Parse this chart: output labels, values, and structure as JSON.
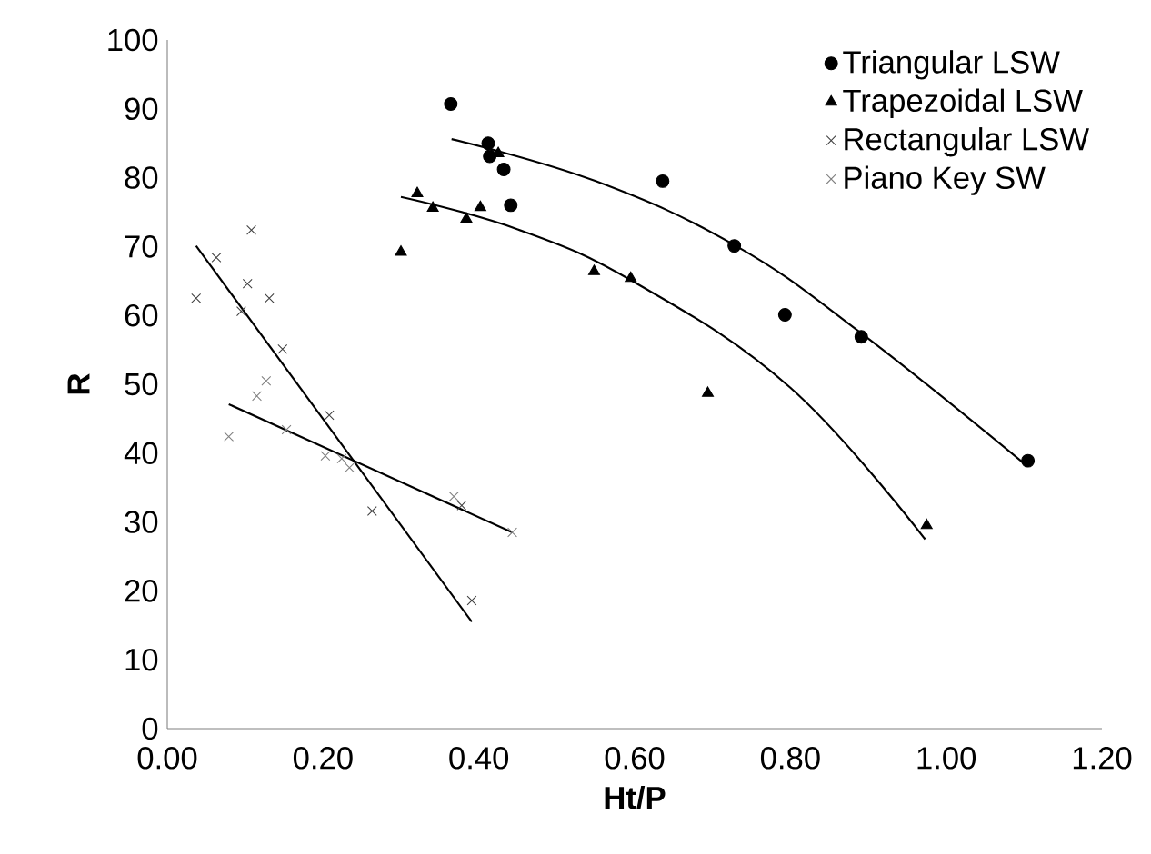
{
  "chart_data": {
    "type": "scatter",
    "xlabel": "Ht/P",
    "ylabel": "R",
    "xlim": [
      0,
      1.2
    ],
    "ylim": [
      0,
      100
    ],
    "xticks": [
      {
        "value": 0,
        "label": "0.00"
      },
      {
        "value": 0.2,
        "label": "0.20"
      },
      {
        "value": 0.4,
        "label": "0.40"
      },
      {
        "value": 0.6,
        "label": "0.60"
      },
      {
        "value": 0.8,
        "label": "0.80"
      },
      {
        "value": 1.0,
        "label": "1.00"
      },
      {
        "value": 1.2,
        "label": "1.20"
      }
    ],
    "yticks": [
      0,
      10,
      20,
      30,
      40,
      50,
      60,
      70,
      80,
      90,
      100
    ],
    "legend": "top right",
    "series": [
      {
        "name": "Triangular LSW",
        "color": "#000000",
        "marker": "circle",
        "x": [
          0.364,
          0.412,
          0.414,
          0.432,
          0.441,
          0.636,
          0.728,
          0.793,
          0.891,
          1.105
        ],
        "values": [
          90.7,
          85.0,
          83.1,
          81.2,
          76.0,
          79.5,
          70.1,
          60.1,
          56.9,
          38.9
        ]
      },
      {
        "name": "Trapezoidal LSW",
        "color": "#000000",
        "marker": "triangle",
        "x": [
          0.3,
          0.321,
          0.341,
          0.384,
          0.402,
          0.425,
          0.548,
          0.595,
          0.694,
          0.975
        ],
        "values": [
          69.2,
          77.7,
          75.6,
          74.0,
          75.7,
          83.5,
          66.4,
          65.4,
          48.7,
          29.5
        ]
      },
      {
        "name": "Rectangular LSW",
        "color": "#404040",
        "marker": "cross",
        "x": [
          0.037,
          0.063,
          0.108,
          0.103,
          0.095,
          0.131,
          0.148,
          0.208,
          0.263,
          0.378,
          0.391
        ],
        "values": [
          62.5,
          68.4,
          72.4,
          64.6,
          60.6,
          62.5,
          55.1,
          45.5,
          31.6,
          32.4,
          18.6
        ]
      },
      {
        "name": "Piano Key SW",
        "color": "#808080",
        "marker": "cross",
        "x": [
          0.079,
          0.115,
          0.127,
          0.153,
          0.203,
          0.224,
          0.234,
          0.368,
          0.443
        ],
        "values": [
          42.4,
          48.3,
          50.5,
          43.4,
          39.6,
          39.2,
          37.9,
          33.7,
          28.5
        ]
      },
      {
        "type": "line",
        "color": "#000000",
        "marker": "none",
        "x": [
          0.365,
          0.55,
          0.73,
          0.89,
          1.1
        ],
        "values": [
          85.6,
          79.5,
          70.1,
          57.5,
          38.5
        ]
      },
      {
        "type": "line",
        "color": "#000000",
        "marker": "none",
        "x": [
          0.3,
          0.45,
          0.6,
          0.8,
          0.973
        ],
        "values": [
          77.2,
          72.5,
          64.8,
          49.5,
          27.5
        ]
      },
      {
        "type": "line",
        "color": "#000000",
        "marker": "none",
        "x": [
          0.037,
          0.391
        ],
        "values": [
          70.1,
          15.5
        ]
      },
      {
        "type": "line",
        "color": "#000000",
        "marker": "none",
        "x": [
          0.079,
          0.443
        ],
        "values": [
          47.1,
          28.5
        ]
      }
    ]
  }
}
